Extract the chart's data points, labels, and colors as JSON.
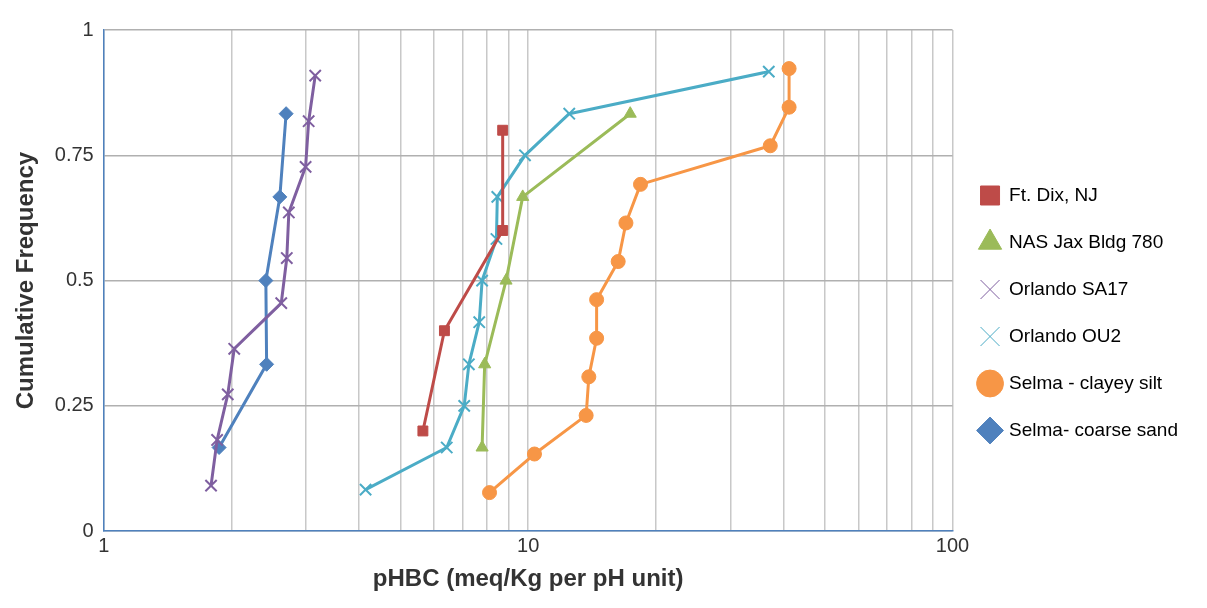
{
  "chart_data": {
    "type": "line",
    "xlabel": "pHBC (meq/Kg per pH unit)",
    "ylabel": "Cumulative Frequency",
    "log": "x",
    "grid": true,
    "legend": "right",
    "xlim": [
      1,
      100
    ],
    "ylim": [
      0,
      1
    ],
    "xticks": [
      1,
      {
        "value": 2,
        "label": null
      },
      {
        "value": 3,
        "label": null
      },
      {
        "value": 4,
        "label": null
      },
      {
        "value": 5,
        "label": null
      },
      {
        "value": 6,
        "label": null
      },
      {
        "value": 7,
        "label": null
      },
      {
        "value": 8,
        "label": null
      },
      {
        "value": 9,
        "label": null
      },
      10,
      {
        "value": 20,
        "label": null
      },
      {
        "value": 30,
        "label": null
      },
      {
        "value": 40,
        "label": null
      },
      {
        "value": 50,
        "label": null
      },
      {
        "value": 60,
        "label": null
      },
      {
        "value": 70,
        "label": null
      },
      {
        "value": 80,
        "label": null
      },
      {
        "value": 90,
        "label": null
      },
      100
    ],
    "yticks": [
      0,
      0.25,
      0.5,
      0.75,
      1
    ],
    "series": [
      {
        "name": "Ft. Dix, NJ",
        "color": "#be4b48",
        "marker": "square",
        "x": [
          5.65,
          6.35,
          8.71,
          8.71
        ],
        "values": [
          0.2,
          0.4,
          0.6,
          0.8
        ]
      },
      {
        "name": "NAS Jax Bldg 780",
        "color": "#9bbb59",
        "marker": "triangle",
        "x": [
          7.79,
          7.9,
          8.87,
          9.71,
          17.4
        ],
        "values": [
          0.167,
          0.333,
          0.5,
          0.667,
          0.833
        ]
      },
      {
        "name": "Orlando SA17",
        "color": "#7f5fa0",
        "marker": "cross",
        "x": [
          1.79,
          1.85,
          1.96,
          2.03,
          2.62,
          2.7,
          2.73,
          2.99,
          3.04,
          3.15
        ],
        "values": [
          0.091,
          0.182,
          0.273,
          0.364,
          0.455,
          0.545,
          0.636,
          0.727,
          0.818,
          0.909
        ]
      },
      {
        "name": "Orlando OU2",
        "color": "#4bacc6",
        "marker": "cross",
        "x": [
          4.14,
          6.43,
          7.07,
          7.25,
          7.67,
          7.79,
          8.42,
          8.46,
          9.83,
          12.5,
          36.9
        ],
        "values": [
          0.083,
          0.167,
          0.25,
          0.333,
          0.417,
          0.5,
          0.583,
          0.667,
          0.75,
          0.833,
          0.917
        ]
      },
      {
        "name": "Selma - clayey silt",
        "color": "#f79646",
        "marker": "circle",
        "x": [
          8.11,
          10.35,
          13.7,
          13.9,
          14.5,
          14.5,
          16.3,
          17.0,
          18.4,
          37.2,
          41.2,
          41.2
        ],
        "values": [
          0.077,
          0.154,
          0.231,
          0.308,
          0.385,
          0.462,
          0.538,
          0.615,
          0.692,
          0.769,
          0.846,
          0.923
        ]
      },
      {
        "name": "Selma- coarse sand",
        "color": "#4f81bd",
        "marker": "diamond",
        "x": [
          1.87,
          2.42,
          2.41,
          2.6,
          2.69
        ],
        "values": [
          0.167,
          0.333,
          0.5,
          0.667,
          0.833
        ]
      }
    ]
  }
}
